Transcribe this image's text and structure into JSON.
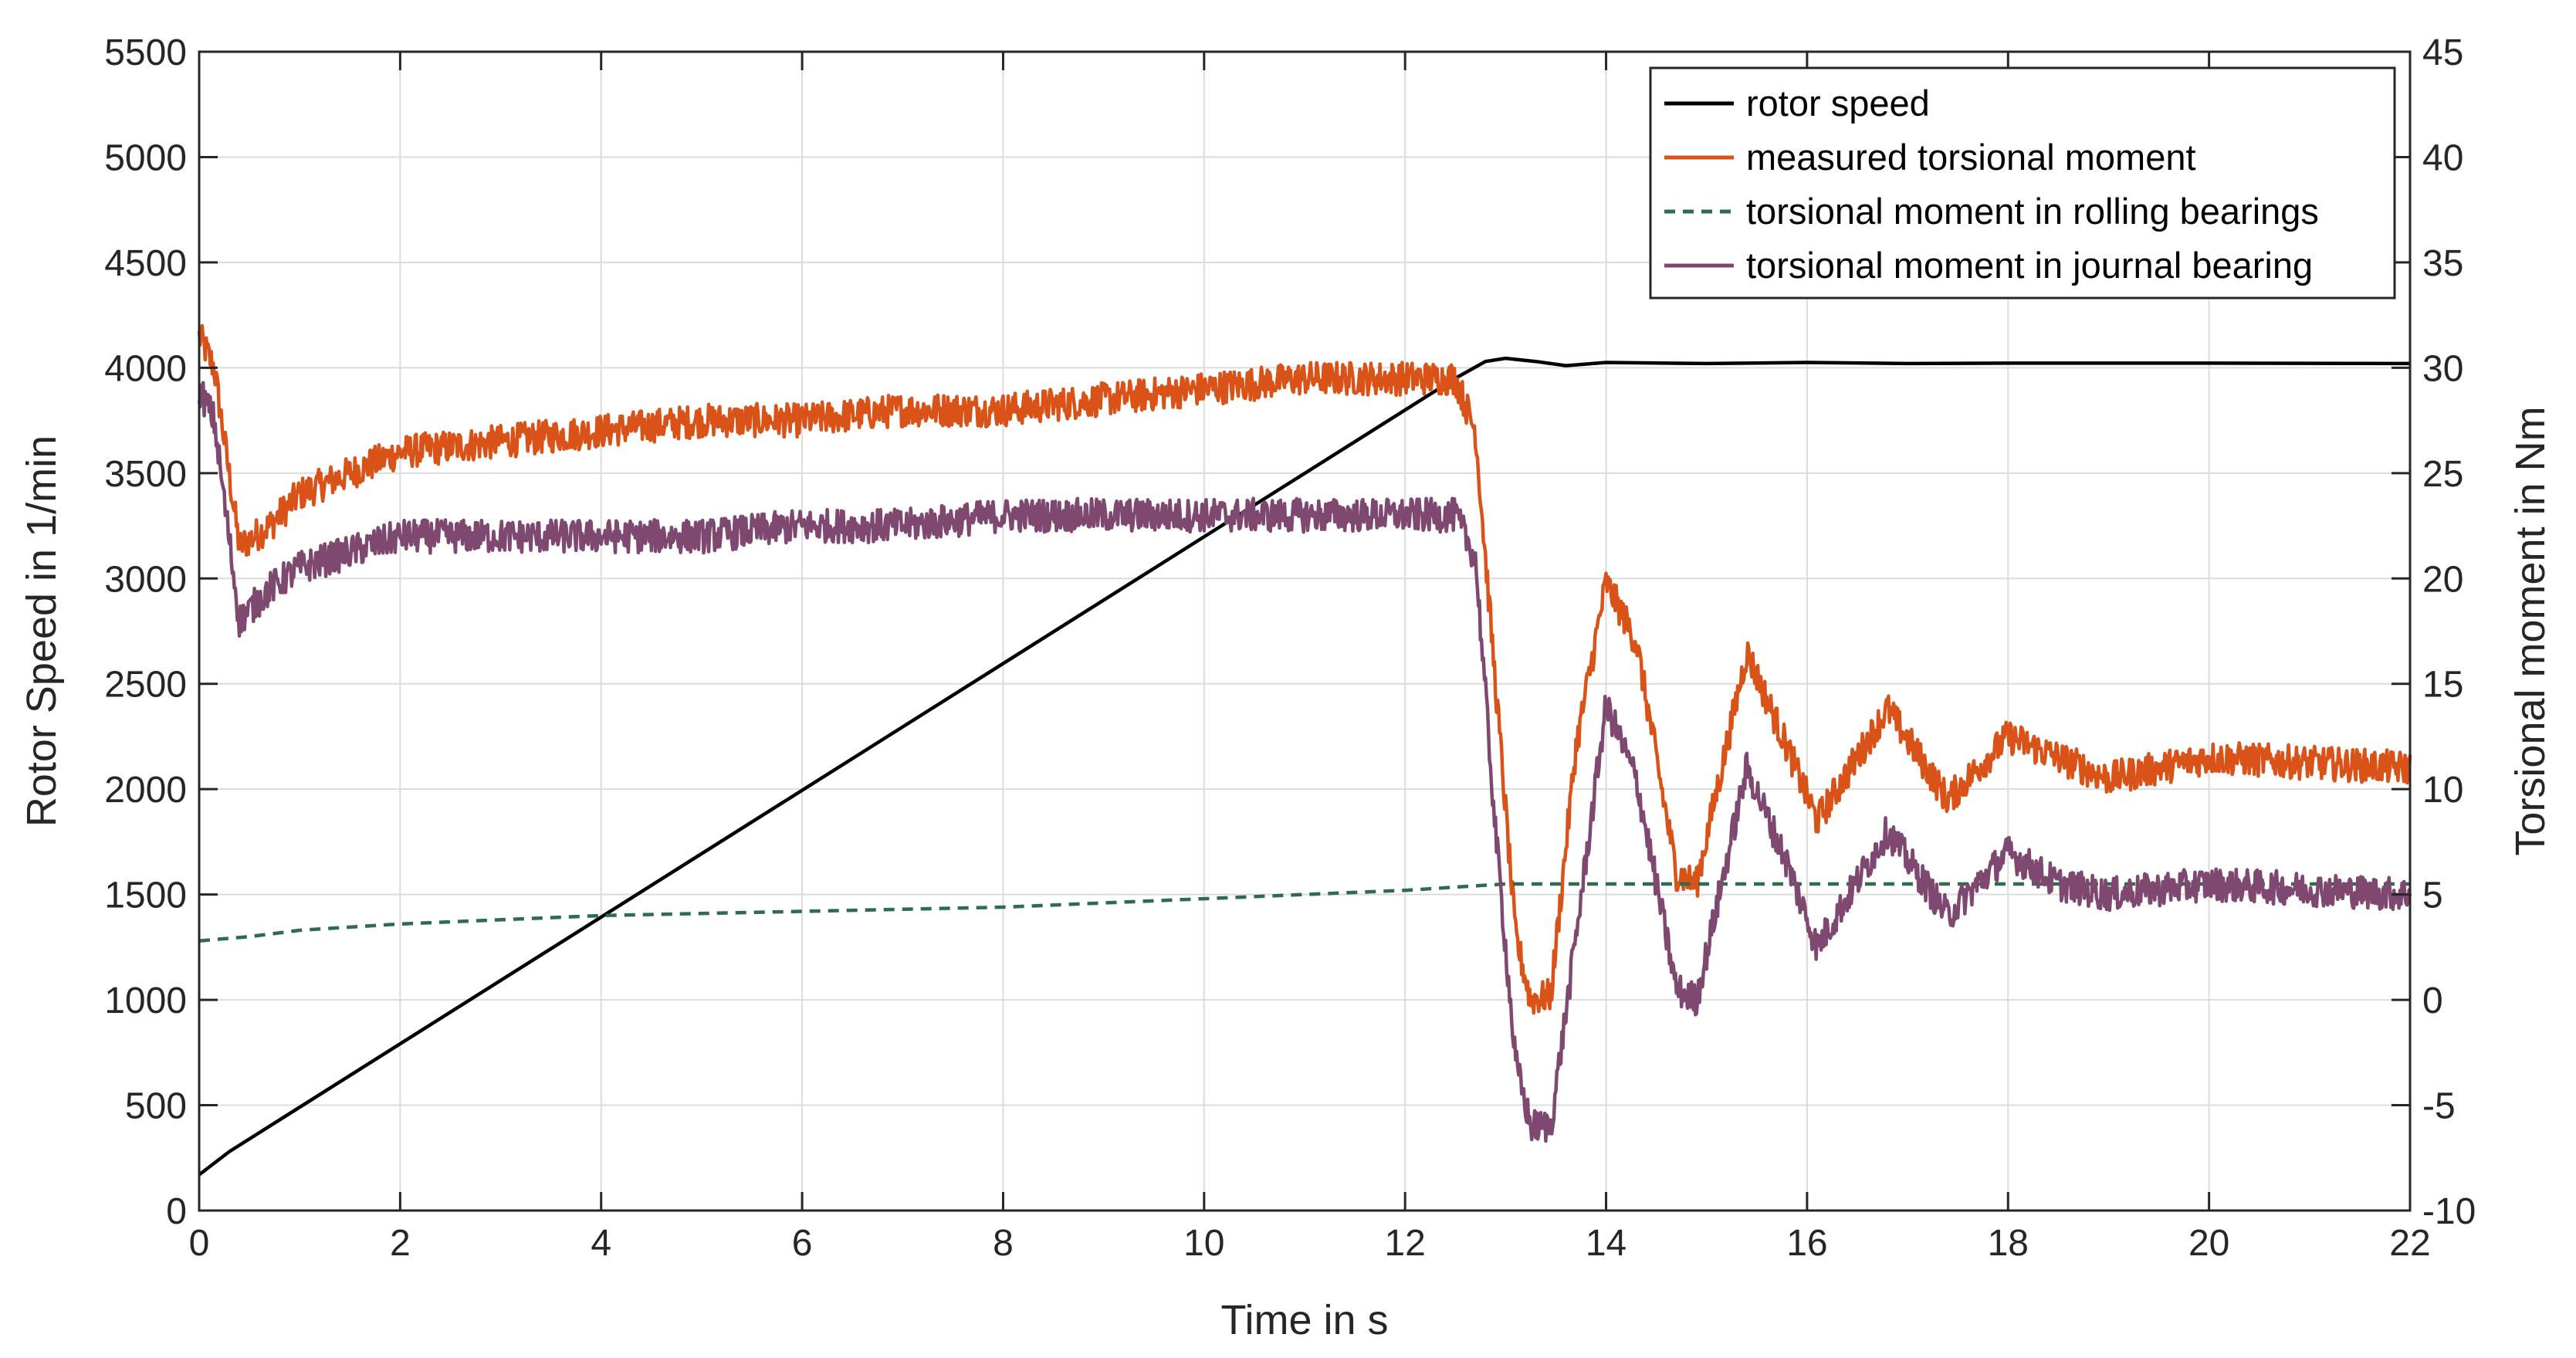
{
  "chart_data": {
    "type": "line",
    "title": "",
    "xlabel": "Time in s",
    "ylabel_left": "Rotor Speed in 1/min",
    "ylabel_right": "Torsional moment in Nm",
    "xlim": [
      0,
      22
    ],
    "ylim_left": [
      0,
      5500
    ],
    "ylim_right": [
      -10,
      45
    ],
    "grid": true,
    "legend_position": "top-right",
    "x_ticks": [
      0,
      2,
      4,
      6,
      8,
      10,
      12,
      14,
      16,
      18,
      20,
      22
    ],
    "y_left_ticks": [
      0,
      500,
      1000,
      1500,
      2000,
      2500,
      3000,
      3500,
      4000,
      4500,
      5000,
      5500
    ],
    "y_right_ticks": [
      -10,
      -5,
      0,
      5,
      10,
      15,
      20,
      25,
      30,
      35,
      40,
      45
    ],
    "series": [
      {
        "name": "rotor speed",
        "axis": "left",
        "color": "#000000",
        "style": "solid",
        "x": [
          0,
          0.3,
          12.5,
          12.8,
          13.0,
          13.3,
          13.6,
          14.0,
          15.0,
          16.0,
          17.0,
          18.0,
          20.0,
          22.0
        ],
        "y": [
          170,
          280,
          3950,
          4030,
          4045,
          4030,
          4010,
          4025,
          4020,
          4025,
          4020,
          4022,
          4022,
          4020
        ]
      },
      {
        "name": "measured torsional moment",
        "axis": "right",
        "color": "#d95319",
        "style": "solid",
        "noise": 0.8,
        "x": [
          0,
          0.15,
          0.4,
          0.7,
          1.0,
          2.0,
          3.0,
          4.0,
          5.0,
          6.0,
          7.0,
          8.0,
          9.0,
          10.0,
          11.0,
          12.0,
          12.5,
          12.7,
          12.9,
          13.1,
          13.25,
          13.45,
          13.7,
          14.0,
          14.3,
          14.7,
          14.9,
          15.4,
          15.8,
          16.1,
          16.8,
          17.4,
          18.0,
          18.5,
          19.0,
          20.0,
          22.0
        ],
        "y": [
          31.5,
          30.0,
          21.5,
          22.5,
          24.0,
          26.0,
          26.5,
          27.0,
          27.5,
          27.5,
          28.0,
          28.0,
          28.5,
          29.0,
          29.5,
          29.5,
          29.5,
          27.0,
          15.0,
          3.0,
          0.0,
          0.2,
          12.0,
          19.8,
          17.0,
          6.0,
          5.5,
          16.5,
          12.0,
          8.5,
          13.8,
          9.5,
          12.5,
          11.5,
          10.5,
          11.5,
          11.0
        ]
      },
      {
        "name": "torsional moment in rolling bearings",
        "axis": "right",
        "color": "#2e6b4f",
        "style": "dashed",
        "x": [
          0,
          0.5,
          1.0,
          2.0,
          4.0,
          6.0,
          8.0,
          10.0,
          12.0,
          13.0,
          14.0,
          16.0,
          18.0,
          20.0,
          22.0
        ],
        "y": [
          2.8,
          3.0,
          3.3,
          3.6,
          4.0,
          4.2,
          4.4,
          4.8,
          5.2,
          5.5,
          5.5,
          5.5,
          5.5,
          5.5,
          5.5
        ]
      },
      {
        "name": "torsional moment in journal bearing",
        "axis": "right",
        "color": "#7e4870",
        "style": "solid",
        "noise": 0.8,
        "x": [
          0,
          0.15,
          0.4,
          0.7,
          1.0,
          2.0,
          3.0,
          4.0,
          5.0,
          6.0,
          7.0,
          8.0,
          9.0,
          10.0,
          11.0,
          12.0,
          12.5,
          12.7,
          12.9,
          13.1,
          13.25,
          13.45,
          13.7,
          14.0,
          14.3,
          14.7,
          14.9,
          15.4,
          15.8,
          16.1,
          16.8,
          17.4,
          18.0,
          18.5,
          19.0,
          20.0,
          22.0
        ],
        "y": [
          29.0,
          27.5,
          18.0,
          19.5,
          20.5,
          22.0,
          22.0,
          22.0,
          22.0,
          22.5,
          22.5,
          23.0,
          23.0,
          23.0,
          23.0,
          23.0,
          23.0,
          21.0,
          8.0,
          -3.0,
          -6.0,
          -6.0,
          3.0,
          14.0,
          10.5,
          0.5,
          0.0,
          11.0,
          6.5,
          2.5,
          8.0,
          4.0,
          7.0,
          5.5,
          5.0,
          5.5,
          5.0
        ]
      }
    ]
  }
}
